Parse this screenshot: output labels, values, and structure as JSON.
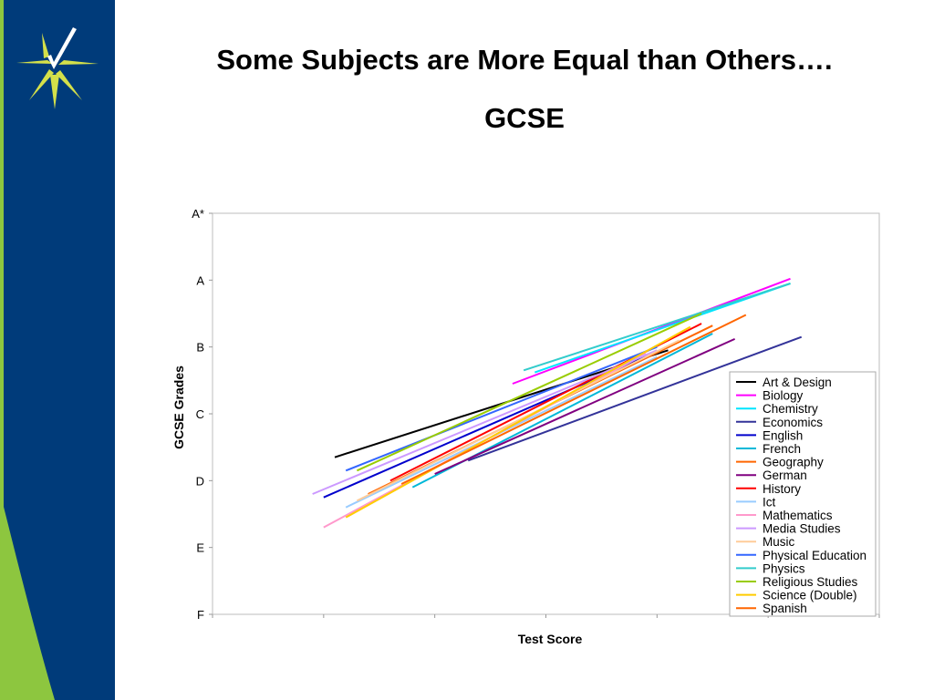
{
  "slide": {
    "title": "Some Subjects are More Equal than Others….",
    "subtitle": "GCSE"
  },
  "colors": {
    "sidebar_navy": "#003B7A",
    "sidebar_green": "#8DC63F",
    "logo_yellow": "#D4E04A",
    "logo_white": "#FFFFFF"
  },
  "icons": {
    "logo": "star-checkmark-logo"
  },
  "chart_data": {
    "type": "line",
    "title": "",
    "xlabel": "Test Score",
    "ylabel": "GCSE Grades",
    "y_ticks": [
      "F",
      "E",
      "D",
      "C",
      "B",
      "A",
      "A*"
    ],
    "ylim": [
      0,
      6
    ],
    "xlim": [
      0,
      6
    ],
    "grid": false,
    "legend_position": "right",
    "series": [
      {
        "name": "Art & Design",
        "color": "#000000",
        "x": [
          1.1,
          4.1
        ],
        "y": [
          2.35,
          3.95
        ]
      },
      {
        "name": "Biology",
        "color": "#FF00FF",
        "x": [
          2.7,
          5.2
        ],
        "y": [
          3.45,
          5.02
        ]
      },
      {
        "name": "Chemistry",
        "color": "#00E5FF",
        "x": [
          2.9,
          5.2
        ],
        "y": [
          3.62,
          4.95
        ]
      },
      {
        "name": "Economics",
        "color": "#333399",
        "x": [
          2.3,
          5.3
        ],
        "y": [
          2.3,
          4.15
        ]
      },
      {
        "name": "English",
        "color": "#0000CC",
        "x": [
          1.0,
          4.1
        ],
        "y": [
          1.75,
          4.0
        ]
      },
      {
        "name": "French",
        "color": "#00B8D8",
        "x": [
          1.8,
          4.5
        ],
        "y": [
          1.9,
          4.2
        ]
      },
      {
        "name": "Geography",
        "color": "#FF6600",
        "x": [
          1.4,
          4.5
        ],
        "y": [
          1.8,
          4.32
        ]
      },
      {
        "name": "German",
        "color": "#800080",
        "x": [
          2.0,
          4.7
        ],
        "y": [
          2.1,
          4.12
        ]
      },
      {
        "name": "History",
        "color": "#FF0000",
        "x": [
          1.6,
          4.4
        ],
        "y": [
          2.0,
          4.35
        ]
      },
      {
        "name": "Ict",
        "color": "#99CCFF",
        "x": [
          1.2,
          4.0
        ],
        "y": [
          1.6,
          3.85
        ]
      },
      {
        "name": "Mathematics",
        "color": "#FF99CC",
        "x": [
          1.0,
          3.9
        ],
        "y": [
          1.3,
          3.9
        ]
      },
      {
        "name": "Media Studies",
        "color": "#CC99FF",
        "x": [
          0.9,
          4.0
        ],
        "y": [
          1.8,
          3.95
        ]
      },
      {
        "name": "Music",
        "color": "#FFCC99",
        "x": [
          1.3,
          4.2
        ],
        "y": [
          1.7,
          4.1
        ]
      },
      {
        "name": "Physical Education",
        "color": "#3366FF",
        "x": [
          1.2,
          4.0
        ],
        "y": [
          2.15,
          4.0
        ]
      },
      {
        "name": "Physics",
        "color": "#33CCCC",
        "x": [
          2.8,
          5.2
        ],
        "y": [
          3.65,
          4.95
        ]
      },
      {
        "name": "Religious Studies",
        "color": "#99CC00",
        "x": [
          1.3,
          4.4
        ],
        "y": [
          2.15,
          4.5
        ]
      },
      {
        "name": "Science (Double)",
        "color": "#FFCC00",
        "x": [
          1.2,
          4.3
        ],
        "y": [
          1.45,
          4.3
        ]
      },
      {
        "name": "Spanish",
        "color": "#FF6600",
        "x": [
          1.7,
          4.8
        ],
        "y": [
          1.95,
          4.48
        ]
      }
    ]
  }
}
